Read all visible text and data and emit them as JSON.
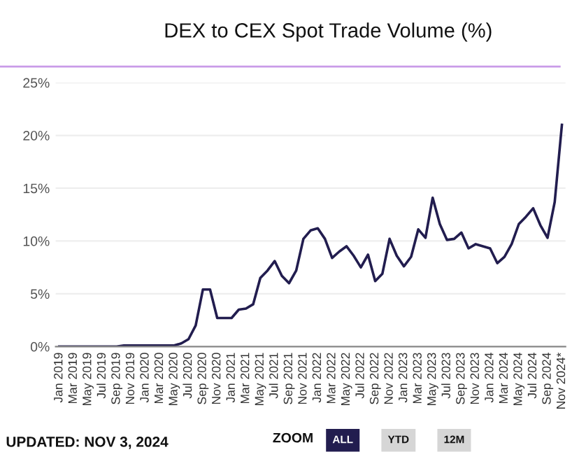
{
  "chart_data": {
    "type": "line",
    "title": "DEX to CEX Spot Trade Volume (%)",
    "categories": [
      "Jan 2019",
      null,
      "Mar 2019",
      null,
      "May 2019",
      null,
      "Jul 2019",
      null,
      "Sep 2019",
      null,
      "Nov 2019",
      null,
      "Jan 2020",
      null,
      "Mar 2020",
      null,
      "May 2020",
      null,
      "Jul 2020",
      null,
      "Sep 2020",
      null,
      "Nov 2020",
      null,
      "Jan 2021",
      null,
      "Mar 2021",
      null,
      "May 2021",
      null,
      "Jul 2021",
      null,
      "Sep 2021",
      null,
      "Nov 2021",
      null,
      "Jan 2022",
      null,
      "Mar 2022",
      null,
      "May 2022",
      null,
      "Jul 2022",
      null,
      "Sep 2022",
      null,
      "Nov 2022",
      null,
      "Jan 2023",
      null,
      "Mar 2023",
      null,
      "May 2023",
      null,
      "Jul 2023",
      null,
      "Sep 2023",
      null,
      "Nov 2023",
      null,
      "Jan 2024",
      null,
      "Mar 2024",
      null,
      "May 2024",
      null,
      "Jul 2024",
      null,
      "Sep 2024",
      null,
      "Nov 2024*"
    ],
    "series": [
      {
        "color": "#221d4f",
        "values": [
          0,
          0,
          0,
          0,
          0,
          0,
          0,
          0,
          0,
          0.1,
          0.1,
          0.1,
          0.1,
          0.1,
          0.1,
          0.1,
          0.1,
          0.3,
          0.7,
          2.0,
          5.4,
          5.4,
          2.7,
          2.7,
          2.7,
          3.5,
          3.6,
          4.0,
          6.5,
          7.2,
          8.1,
          6.7,
          6.0,
          7.2,
          10.2,
          11.0,
          11.2,
          10.2,
          8.4,
          9.0,
          9.5,
          8.6,
          7.5,
          8.7,
          6.2,
          6.9,
          10.2,
          8.6,
          7.6,
          8.5,
          11.1,
          10.3,
          14.1,
          11.6,
          10.1,
          10.2,
          10.8,
          9.3,
          9.7,
          9.5,
          9.3,
          7.9,
          8.5,
          9.7,
          11.6,
          12.3,
          13.1,
          11.5,
          10.3,
          13.7,
          21.0
        ]
      }
    ],
    "ylim": [
      0,
      25
    ],
    "yticks": [
      {
        "value": 0,
        "label": "0%"
      },
      {
        "value": 5,
        "label": "5%"
      },
      {
        "value": 10,
        "label": "10%"
      },
      {
        "value": 15,
        "label": "15%"
      },
      {
        "value": 20,
        "label": "20%"
      },
      {
        "value": 25,
        "label": "25%"
      }
    ],
    "grid": "y",
    "legend": false,
    "marker": "none",
    "line_style": "solid",
    "annotations": [
      "UPDATED: NOV 3, 2024",
      "ZOOM",
      "ALL",
      "YTD",
      "12M"
    ]
  }
}
